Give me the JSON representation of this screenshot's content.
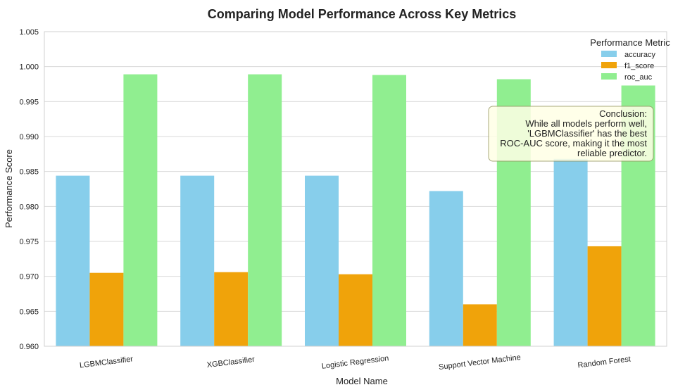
{
  "chart_data": {
    "type": "bar",
    "title": "Comparing Model Performance Across Key Metrics",
    "xlabel": "Model Name",
    "ylabel": "Performance Score",
    "ylim": [
      0.96,
      1.005
    ],
    "yticks": [
      "0.960",
      "0.965",
      "0.970",
      "0.975",
      "0.980",
      "0.985",
      "0.990",
      "0.995",
      "1.000",
      "1.005"
    ],
    "grid": true,
    "legend_position": "top-right",
    "legend_title": "Performance Metric",
    "categories": [
      "LGBMClassifier",
      "XGBClassifier",
      "Logistic Regression",
      "Support Vector Machine",
      "Random Forest"
    ],
    "series": [
      {
        "name": "accuracy",
        "color": "#87ceeb",
        "values": [
          0.9844,
          0.9844,
          0.9844,
          0.9822,
          0.9868
        ]
      },
      {
        "name": "f1_score",
        "color": "#f0a30a",
        "values": [
          0.9705,
          0.9706,
          0.9703,
          0.966,
          0.9743
        ]
      },
      {
        "name": "roc_auc",
        "color": "#90ee90",
        "values": [
          0.9989,
          0.9989,
          0.9988,
          0.9982,
          0.9973
        ]
      }
    ],
    "annotation": {
      "lines": [
        "Conclusion:",
        "While all models perform well,",
        "'LGBMClassifier' has the best",
        "ROC-AUC score, making it the most",
        "reliable predictor."
      ]
    }
  },
  "colors": {
    "grid": "#d9d9d9",
    "annotation_fill": "#ffffe6",
    "annotation_border": "#999966"
  }
}
